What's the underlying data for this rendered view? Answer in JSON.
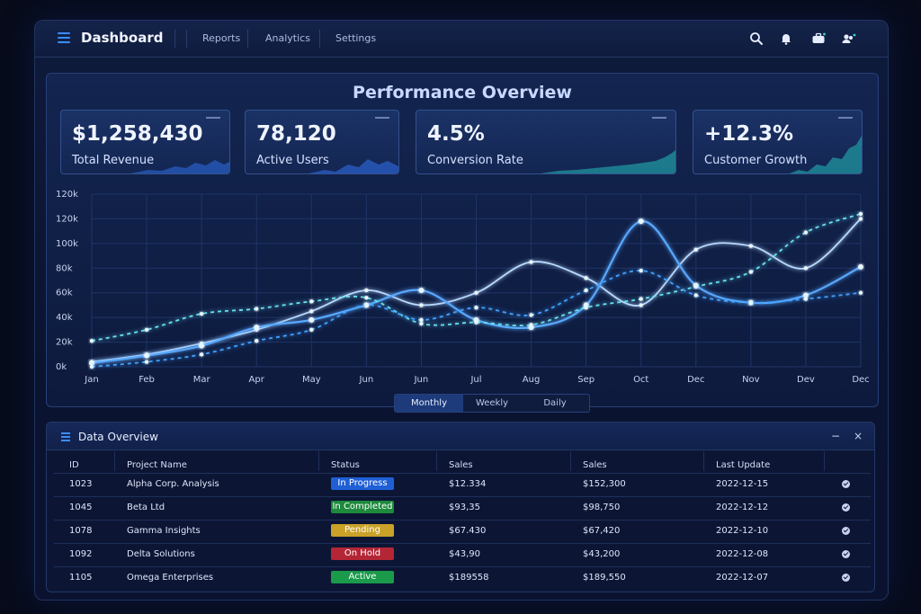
{
  "header": {
    "title": "Dashboard",
    "nav": [
      "Reports",
      "Analytics",
      "Settings"
    ]
  },
  "icons": [
    "menu-icon",
    "search-icon",
    "bell-icon",
    "briefcase-icon",
    "user-group-icon"
  ],
  "performance": {
    "title": "Performance Overview",
    "kpis": [
      {
        "value": "$1,258,430",
        "label": "Total Revenue"
      },
      {
        "value": "78,120",
        "label": "Active Users"
      },
      {
        "value": "4.5%",
        "label": "Conversion Rate"
      },
      {
        "value": "+12.3%",
        "label": "Customer Growth"
      }
    ],
    "toggle": {
      "options": [
        "Monthly",
        "Weekly",
        "Daily"
      ],
      "selected": "Monthly"
    }
  },
  "chart_data": {
    "type": "line",
    "x": [
      "Jan",
      "Feb",
      "Mar",
      "Apr",
      "May",
      "Jun",
      "Jun",
      "Jul",
      "Aug",
      "Sep",
      "Oct",
      "Dec",
      "Nov",
      "Dev",
      "Dec"
    ],
    "y_ticks": [
      "0k",
      "20k",
      "40k",
      "60k",
      "80k",
      "100k",
      "120k",
      "120k"
    ],
    "ylim": [
      0,
      140
    ],
    "grid": true,
    "series": [
      {
        "values": [
          4,
          10,
          19,
          30,
          45,
          62,
          50,
          60,
          85,
          72,
          50,
          95,
          98,
          80,
          120
        ],
        "color": "#b9d9ff"
      },
      {
        "values": [
          3,
          9,
          17,
          32,
          38,
          50,
          62,
          38,
          32,
          50,
          118,
          66,
          52,
          58,
          81
        ],
        "color": "#59a8ff"
      },
      {
        "values": [
          21,
          30,
          43,
          47,
          53,
          56,
          35,
          36,
          34,
          48,
          55,
          65,
          77,
          109,
          124
        ],
        "color": "#68e0f0"
      },
      {
        "values": [
          0,
          4,
          10,
          21,
          30,
          50,
          38,
          48,
          42,
          62,
          78,
          58,
          52,
          55,
          60
        ],
        "color": "#3fa0ff"
      }
    ],
    "colors": {
      "accent": "#3a8dff",
      "line_glow": "#8fd0ff"
    }
  },
  "table": {
    "title": "Data Overview",
    "window_buttons": [
      "−",
      "×"
    ],
    "columns": [
      "ID",
      "Project Name",
      "Status",
      "Sales",
      "Sales",
      "Last Update"
    ],
    "rows": [
      {
        "id": "1023",
        "name": "Alpha Corp. Analysis",
        "status": "In Progress",
        "status_color": "#1f5fd6",
        "sales1": "$12.334",
        "sales2": "$152,300",
        "updated": "2022-12-15"
      },
      {
        "id": "1045",
        "name": "Beta Ltd",
        "status": "In Completed",
        "status_color": "#1d8a3c",
        "sales1": "$93,35",
        "sales2": "$98,750",
        "updated": "2022-12-12"
      },
      {
        "id": "1078",
        "name": "Gamma Insights",
        "status": "Pending",
        "status_color": "#c9a227",
        "sales1": "$67.430",
        "sales2": "$67,420",
        "updated": "2022-12-10"
      },
      {
        "id": "1092",
        "name": "Delta Solutions",
        "status": "On Hold",
        "status_color": "#b32636",
        "sales1": "$43,90",
        "sales2": "$43,200",
        "updated": "2022-12-08"
      },
      {
        "id": "1105",
        "name": "Omega Enterprises",
        "status": "Active",
        "status_color": "#1a9a4a",
        "sales1": "$189558",
        "sales2": "$189,550",
        "updated": "2022-12-07"
      }
    ]
  }
}
